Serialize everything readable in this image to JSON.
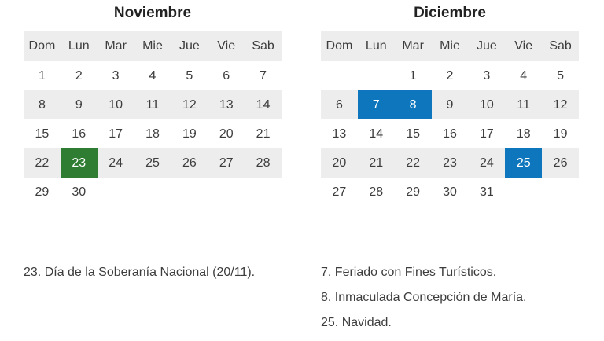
{
  "colors": {
    "shaded_row": "#ededed",
    "green_highlight": "#2e7d32",
    "blue_highlight": "#0d76bc",
    "highlight_text": "#ffffff",
    "title_text": "#222222",
    "body_text": "#3d3d3d"
  },
  "calendars": [
    {
      "title": "Noviembre",
      "day_headers": [
        "Dom",
        "Lun",
        "Mar",
        "Mie",
        "Jue",
        "Vie",
        "Sab"
      ],
      "weeks": [
        [
          "1",
          "2",
          "3",
          "4",
          "5",
          "6",
          "7"
        ],
        [
          "8",
          "9",
          "10",
          "11",
          "12",
          "13",
          "14"
        ],
        [
          "15",
          "16",
          "17",
          "18",
          "19",
          "20",
          "21"
        ],
        [
          "22",
          "23",
          "24",
          "25",
          "26",
          "27",
          "28"
        ],
        [
          "29",
          "30",
          "",
          "",
          "",
          "",
          ""
        ]
      ],
      "highlights": {
        "23": "green"
      }
    },
    {
      "title": "Diciembre",
      "day_headers": [
        "Dom",
        "Lun",
        "Mar",
        "Mie",
        "Jue",
        "Vie",
        "Sab"
      ],
      "weeks": [
        [
          "",
          "",
          "1",
          "2",
          "3",
          "4",
          "5"
        ],
        [
          "6",
          "7",
          "8",
          "9",
          "10",
          "11",
          "12"
        ],
        [
          "13",
          "14",
          "15",
          "16",
          "17",
          "18",
          "19"
        ],
        [
          "20",
          "21",
          "22",
          "23",
          "24",
          "25",
          "26"
        ],
        [
          "27",
          "28",
          "29",
          "30",
          "31",
          "",
          ""
        ]
      ],
      "highlights": {
        "7": "blue",
        "8": "blue",
        "25": "blue"
      }
    }
  ],
  "footnotes": {
    "left": [
      "23. Día de la Soberanía Nacional (20/11)."
    ],
    "right": [
      "7. Feriado con Fines Turísticos.",
      "8. Inmaculada Concepción de María.",
      "25. Navidad."
    ]
  }
}
